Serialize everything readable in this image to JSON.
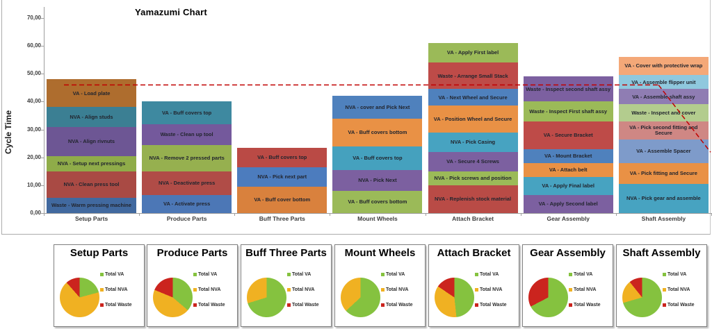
{
  "chart_data": [
    {
      "type": "bar",
      "variant": "stacked-yamazumi",
      "title": "Yamazumi Chart",
      "ylabel": "Cycle Time",
      "xlabel": "",
      "ylim": [
        0,
        70
      ],
      "ytick_labels": [
        "0,00",
        "10,00",
        "20,00",
        "30,00",
        "40,00",
        "50,00",
        "60,00",
        "70,00"
      ],
      "grid": false,
      "legend_position": "none",
      "takt_reference_line": {
        "value": 46,
        "color": "#C00000",
        "style": "dashed"
      },
      "categories": [
        "Setup Parts",
        "Produce Parts",
        "Buff Three Parts",
        "Mount Wheels",
        "Attach Bracket",
        "Gear Assembly",
        "Shaft Assembly"
      ],
      "stacks": [
        {
          "category": "Setup Parts",
          "total": 48,
          "segments": [
            {
              "label": "Waste - Warm pressing machine",
              "value": 5.5,
              "color": "#41699F"
            },
            {
              "label": "NVA - Clean press tool",
              "value": 9.5,
              "color": "#A94A44"
            },
            {
              "label": "NVA - Setup next pressings",
              "value": 5.5,
              "color": "#8FAC49"
            },
            {
              "label": "NVA - Align rivnuts",
              "value": 10.5,
              "color": "#6D5694"
            },
            {
              "label": "NVA - Align studs",
              "value": 7,
              "color": "#3B7F93"
            },
            {
              "label": "VA - Load plate",
              "value": 10,
              "color": "#AE6D2E"
            }
          ]
        },
        {
          "category": "Produce Parts",
          "total": 40,
          "segments": [
            {
              "label": "VA - Activate press",
              "value": 6.5,
              "color": "#4C77B6"
            },
            {
              "label": "NVA - Deactivate press",
              "value": 8.5,
              "color": "#B04C47"
            },
            {
              "label": "NVA - Remove 2 pressed parts",
              "value": 9.5,
              "color": "#96B04F"
            },
            {
              "label": "Waste - Clean up tool",
              "value": 7.5,
              "color": "#74599C"
            },
            {
              "label": "VA - Buff covers top",
              "value": 8,
              "color": "#3E89A0"
            }
          ]
        },
        {
          "category": "Buff Three Parts",
          "total": 23.5,
          "segments": [
            {
              "label": "VA - Buff cover bottom",
              "value": 9.5,
              "color": "#D9813D"
            },
            {
              "label": "NVA - Pick next part",
              "value": 7,
              "color": "#4C7CBE"
            },
            {
              "label": "VA - Buff covers top",
              "value": 7,
              "color": "#BA4A45"
            }
          ]
        },
        {
          "category": "Mount Wheels",
          "total": 42,
          "segments": [
            {
              "label": "VA - Buff covers bottom",
              "value": 8,
              "color": "#9BBA58"
            },
            {
              "label": "NVA - Pick Next",
              "value": 7.5,
              "color": "#7C60A0"
            },
            {
              "label": "VA - Buff covers top",
              "value": 8.5,
              "color": "#45A1BE"
            },
            {
              "label": "VA - Buff covers bottom",
              "value": 10,
              "color": "#E99145"
            },
            {
              "label": "NVA - cover and Pick Next",
              "value": 8,
              "color": "#4F81BD"
            }
          ]
        },
        {
          "category": "Attach Bracket",
          "total": 61,
          "segments": [
            {
              "label": "NVA - Replenish stock material",
              "value": 10,
              "color": "#B94B46"
            },
            {
              "label": "NVA - Pick screws and position",
              "value": 5,
              "color": "#9BBA58"
            },
            {
              "label": "VA - Secure 4 Screws",
              "value": 7,
              "color": "#7C60A0"
            },
            {
              "label": "NVA - Pick Casing",
              "value": 7,
              "color": "#47A3C1"
            },
            {
              "label": "VA - Position Wheel and Secure",
              "value": 9.5,
              "color": "#E99145"
            },
            {
              "label": "VA - Next Wheel and Secure",
              "value": 6,
              "color": "#4F81BD"
            },
            {
              "label": "Waste - Arrange Small Stack",
              "value": 9.5,
              "color": "#BE4B48"
            },
            {
              "label": "VA - Apply First label",
              "value": 7,
              "color": "#9BBA58"
            }
          ]
        },
        {
          "category": "Gear Assembly",
          "total": 49,
          "segments": [
            {
              "label": "VA - Apply Second label",
              "value": 6.5,
              "color": "#7C60A0"
            },
            {
              "label": "VA - Apply Final label",
              "value": 6.5,
              "color": "#47A3C1"
            },
            {
              "label": "VA - Attach belt",
              "value": 5,
              "color": "#E99145"
            },
            {
              "label": "VA - Mount Bracket",
              "value": 5,
              "color": "#4F81BD"
            },
            {
              "label": "VA - Secure Bracket",
              "value": 10,
              "color": "#BE4B48"
            },
            {
              "label": "Waste - Inspect First shaft assy",
              "value": 7,
              "color": "#9BBA58"
            },
            {
              "label": "Waste - Inspect second shaft assy",
              "value": 9,
              "color": "#7C60A0"
            }
          ]
        },
        {
          "category": "Shaft Assembly",
          "total": 56,
          "segments": [
            {
              "label": "NVA - Pick gear and assemble",
              "value": 10.5,
              "color": "#47A3C1"
            },
            {
              "label": "VA - Pick fitting and Secure",
              "value": 7.5,
              "color": "#E99145"
            },
            {
              "label": "VA - Assemble Spacer",
              "value": 8.5,
              "color": "#7E9BCA"
            },
            {
              "label": "VA - Pick second fitting and Secure",
              "value": 6.5,
              "color": "#CF8784"
            },
            {
              "label": "Waste - Inspect and cover",
              "value": 6,
              "color": "#B3CC8E"
            },
            {
              "label": "VA - Assemble shaft assy",
              "value": 5.5,
              "color": "#8F7DB3"
            },
            {
              "label": "VA - Assemble flipper unit",
              "value": 5,
              "color": "#8FC8DE"
            },
            {
              "label": "VA - Cover with protective wrap",
              "value": 6.5,
              "color": "#F4A878"
            }
          ]
        }
      ]
    },
    {
      "type": "pie",
      "title": "Setup Parts",
      "legend": [
        "Total VA",
        "Total NVA",
        "Total Waste"
      ],
      "values": {
        "total_va": 10,
        "total_nva": 32.5,
        "total_waste": 5.5
      },
      "colors": {
        "va": "#85C23F",
        "nva": "#F0B122",
        "waste": "#CB241E"
      }
    },
    {
      "type": "pie",
      "title": "Produce Parts",
      "legend": [
        "Total VA",
        "Total NVA",
        "Total Waste"
      ],
      "values": {
        "total_va": 14.5,
        "total_nva": 18,
        "total_waste": 7.5
      },
      "colors": {
        "va": "#85C23F",
        "nva": "#F0B122",
        "waste": "#CB241E"
      }
    },
    {
      "type": "pie",
      "title": "Buff Three Parts",
      "legend": [
        "Total VA",
        "Total NVA",
        "Total Waste"
      ],
      "values": {
        "total_va": 16.5,
        "total_nva": 7,
        "total_waste": 0
      },
      "colors": {
        "va": "#85C23F",
        "nva": "#F0B122",
        "waste": "#CB241E"
      }
    },
    {
      "type": "pie",
      "title": "Mount Wheels",
      "legend": [
        "Total VA",
        "Total NVA",
        "Total Waste"
      ],
      "values": {
        "total_va": 26.5,
        "total_nva": 15.5,
        "total_waste": 0
      },
      "colors": {
        "va": "#85C23F",
        "nva": "#F0B122",
        "waste": "#CB241E"
      }
    },
    {
      "type": "pie",
      "title": "Attach Bracket",
      "legend": [
        "Total VA",
        "Total NVA",
        "Total Waste"
      ],
      "values": {
        "total_va": 29.5,
        "total_nva": 22,
        "total_waste": 9.5
      },
      "colors": {
        "va": "#85C23F",
        "nva": "#F0B122",
        "waste": "#CB241E"
      }
    },
    {
      "type": "pie",
      "title": "Gear Assembly",
      "legend": [
        "Total VA",
        "Total NVA",
        "Total Waste"
      ],
      "values": {
        "total_va": 33,
        "total_nva": 0,
        "total_waste": 16
      },
      "colors": {
        "va": "#85C23F",
        "nva": "#F0B122",
        "waste": "#CB241E"
      }
    },
    {
      "type": "pie",
      "title": "Shaft Assembly",
      "legend": [
        "Total VA",
        "Total NVA",
        "Total Waste"
      ],
      "values": {
        "total_va": 39.5,
        "total_nva": 10.5,
        "total_waste": 6
      },
      "colors": {
        "va": "#85C23F",
        "nva": "#F0B122",
        "waste": "#CB241E"
      }
    }
  ]
}
